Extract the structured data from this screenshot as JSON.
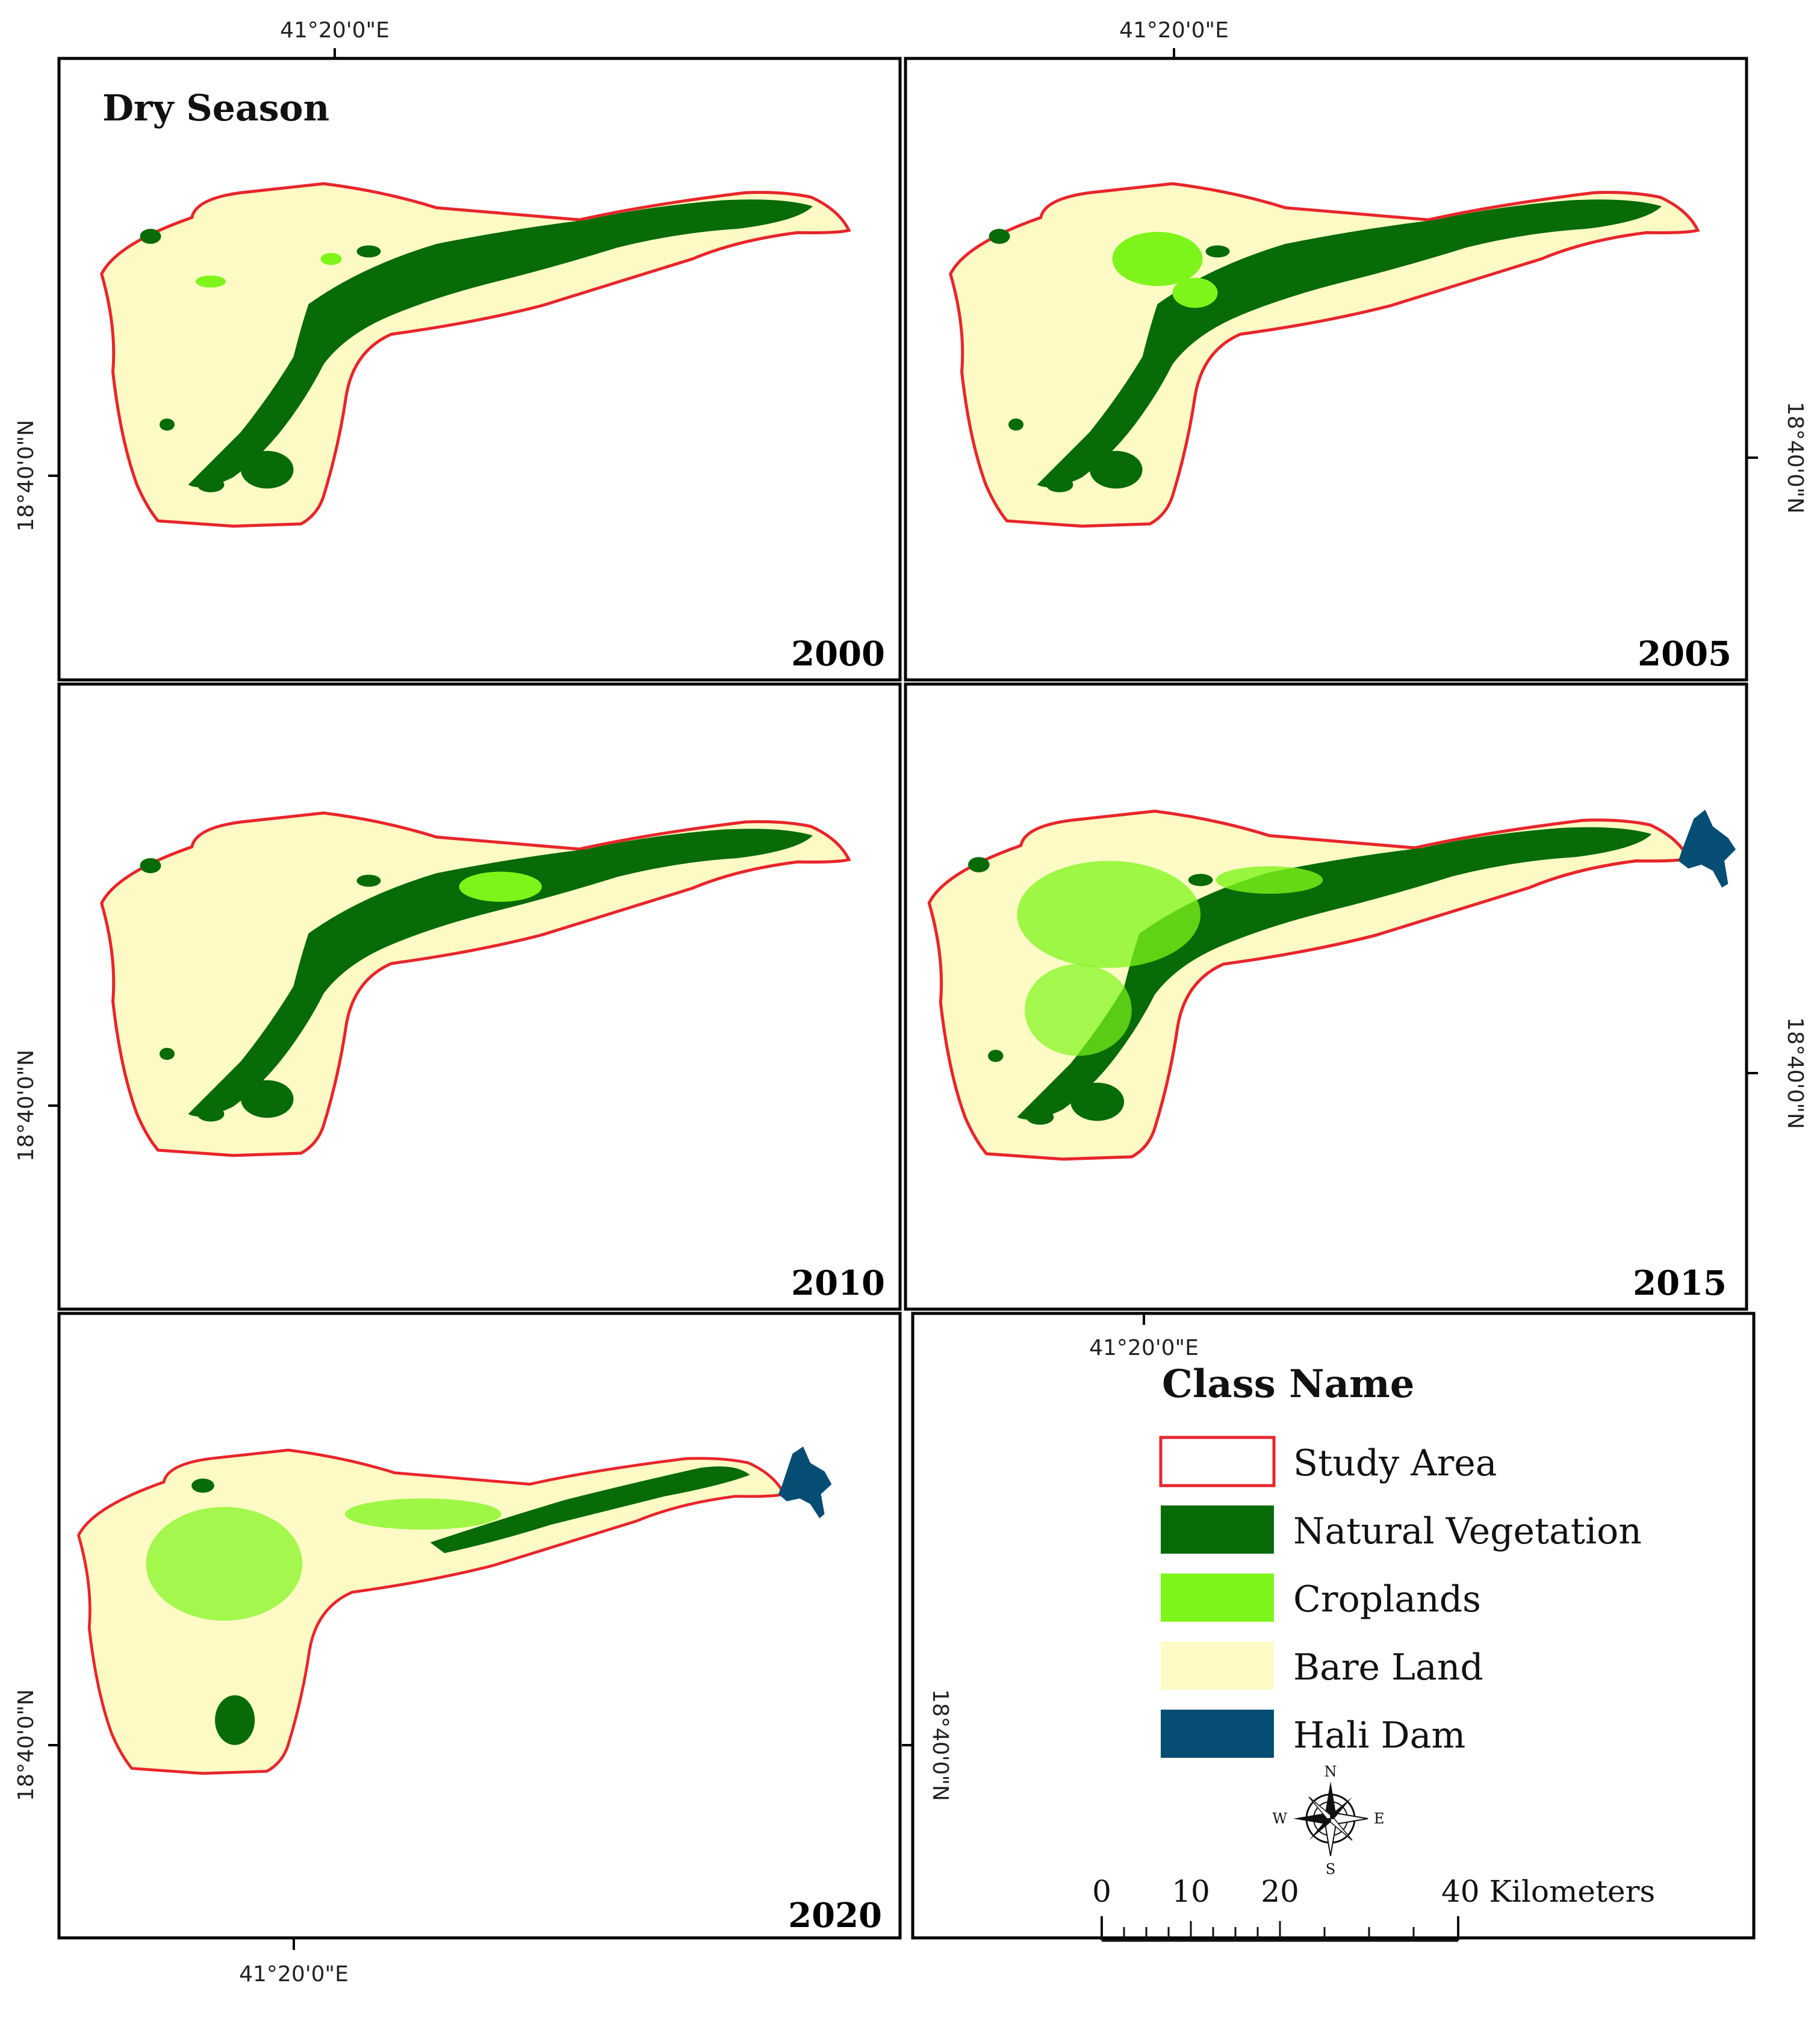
{
  "figure": {
    "season_title": "Dry Season",
    "coord_labels": {
      "lon": "41°20'0\"E",
      "lat": "18°40'0\"N"
    },
    "panels": [
      {
        "id": "2000",
        "year": "2000",
        "has_dam": false
      },
      {
        "id": "2005",
        "year": "2005",
        "has_dam": false
      },
      {
        "id": "2010",
        "year": "2010",
        "has_dam": false
      },
      {
        "id": "2015",
        "year": "2015",
        "has_dam": true
      },
      {
        "id": "2020",
        "year": "2020",
        "has_dam": true
      }
    ]
  },
  "legend": {
    "title": "Class Name",
    "items": [
      {
        "label": "Study Area",
        "fill": "#ffffff",
        "stroke": "#e8252b"
      },
      {
        "label": "Natural Vegetation",
        "fill": "#076b07",
        "stroke": "none"
      },
      {
        "label": "Croplands",
        "fill": "#7ef51a",
        "stroke": "none"
      },
      {
        "label": "Bare Land",
        "fill": "#fdfac6",
        "stroke": "none"
      },
      {
        "label": "Hali Dam",
        "fill": "#064d74",
        "stroke": "none"
      }
    ]
  },
  "north_arrow": {
    "n": "N",
    "s": "S",
    "e": "E",
    "w": "W"
  },
  "scale_bar": {
    "ticks": [
      "0",
      "10",
      "20",
      "40 Kilometers"
    ]
  },
  "colors": {
    "boundary": "#e8252b",
    "bare_land": "#fdfac6",
    "natural_vegetation": "#076b07",
    "croplands": "#7ef51a",
    "dam": "#064d74"
  }
}
